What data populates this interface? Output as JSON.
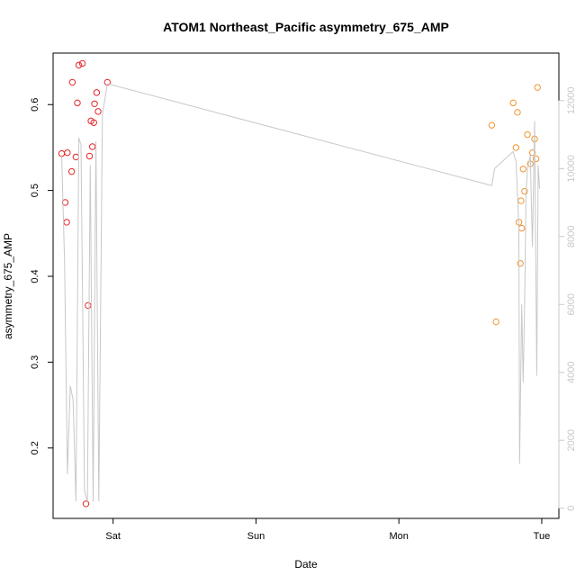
{
  "chart_data": {
    "type": "scatter",
    "title": "ATOM1 Northeast_Pacific asymmetry_675_AMP",
    "xlabel": "Date",
    "ylabel": "asymmetry_675_AMP",
    "x_tick_labels": [
      "Sat",
      "Sun",
      "Mon",
      "Tue"
    ],
    "x_tick_positions": [
      1.0,
      2.0,
      3.0,
      4.0
    ],
    "xlim": [
      0.58,
      4.12
    ],
    "ylim": [
      0.118,
      0.66
    ],
    "y_ticks": [
      0.2,
      0.3,
      0.4,
      0.5,
      0.6
    ],
    "y2_ticks": [
      0,
      2000,
      4000,
      6000,
      8000,
      10000,
      12000
    ],
    "y2lim": [
      -300,
      13400
    ],
    "grid": false,
    "colors": {
      "series_1": "#e8262a",
      "series_2": "#f3932b",
      "line": "#c8c8c8",
      "right_axis": "#c8c8c8"
    },
    "series": [
      {
        "style": "points",
        "color": "#e8262a",
        "x": [
          0.64,
          0.665,
          0.675,
          0.68,
          0.71,
          0.715,
          0.74,
          0.75,
          0.76,
          0.785,
          0.81,
          0.825,
          0.835,
          0.845,
          0.855,
          0.865,
          0.87,
          0.885,
          0.895,
          0.96
        ],
        "y": [
          0.543,
          0.486,
          0.463,
          0.544,
          0.522,
          0.626,
          0.539,
          0.602,
          0.646,
          0.648,
          0.135,
          0.366,
          0.54,
          0.581,
          0.551,
          0.579,
          0.601,
          0.614,
          0.592,
          0.626
        ]
      },
      {
        "style": "points",
        "color": "#f3932b",
        "x": [
          3.65,
          3.68,
          3.8,
          3.82,
          3.83,
          3.84,
          3.85,
          3.855,
          3.86,
          3.87,
          3.88,
          3.9,
          3.92,
          3.935,
          3.95
        ],
        "y": [
          0.576,
          0.347,
          0.602,
          0.55,
          0.591,
          0.463,
          0.415,
          0.488,
          0.456,
          0.525,
          0.499,
          0.565,
          0.531,
          0.544,
          0.56
        ]
      },
      {
        "style": "points",
        "color": "#f3932b",
        "x": [
          3.96,
          3.97
        ],
        "y": [
          0.537,
          0.62
        ]
      },
      {
        "style": "line",
        "axis": "right",
        "color": "#c8c8c8",
        "x": [
          0.64,
          0.66,
          0.68,
          0.7,
          0.72,
          0.74,
          0.76,
          0.775,
          0.8,
          0.82,
          0.84,
          0.86,
          0.88,
          0.9,
          0.925,
          0.96,
          3.65,
          3.67,
          3.8,
          3.82,
          3.84,
          3.845,
          3.86,
          3.87,
          3.88,
          3.89,
          3.9,
          3.92,
          3.935,
          3.95,
          3.965,
          3.975,
          3.985
        ],
        "y": [
          10400,
          7300,
          1000,
          3600,
          3200,
          200,
          10900,
          10700,
          500,
          200,
          10100,
          200,
          10800,
          200,
          11600,
          12500,
          9500,
          10000,
          10500,
          10200,
          8300,
          1300,
          6000,
          3700,
          6000,
          9300,
          10000,
          10400,
          7700,
          11400,
          3900,
          10100,
          9400
        ]
      }
    ]
  }
}
